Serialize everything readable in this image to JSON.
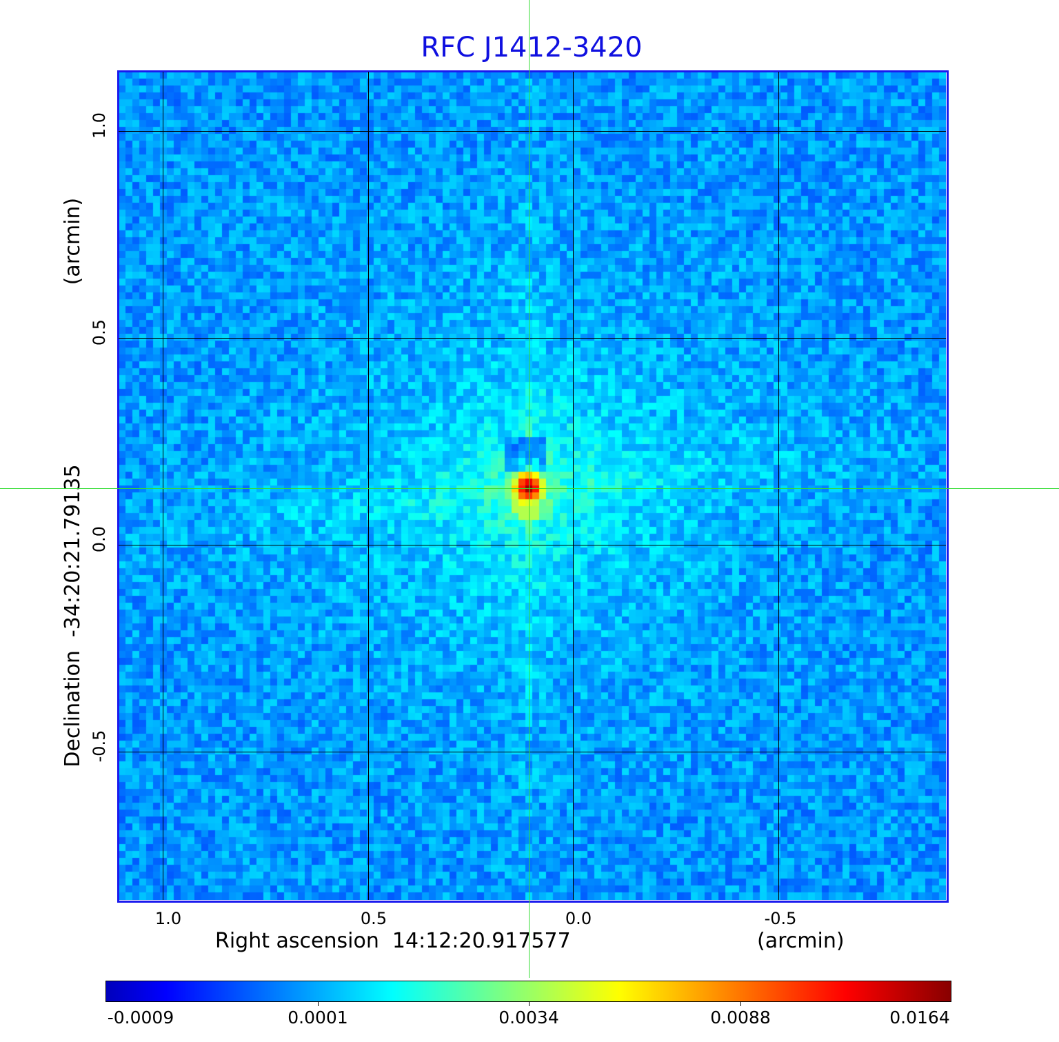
{
  "chart_data": {
    "type": "heatmap",
    "title": "RFC J1412-3420",
    "xlabel": "Right ascension  14:12:20.917577",
    "xunit": "(arcmin)",
    "ylabel": "Declination  -34:20:21.79135",
    "yunit": "(arcmin)",
    "xlim": [
      1.108,
      -0.909
    ],
    "ylim": [
      -0.858,
      1.143
    ],
    "x_ticks": [
      "1.0",
      "0.5",
      "0.0",
      "-0.5"
    ],
    "x_tick_values": [
      1.0,
      0.5,
      0.0,
      -0.5
    ],
    "y_ticks": [
      "1.0",
      "0.5",
      "0.0",
      "-0.5"
    ],
    "y_tick_values": [
      1.0,
      0.5,
      0.0,
      -0.5
    ],
    "grid": true,
    "colormap": "jet",
    "colorbar": {
      "ticks": [
        "-0.0009",
        "0.0001",
        "0.0034",
        "0.0088",
        "0.0164"
      ],
      "min": -0.0009,
      "max": 0.0164,
      "placement": "bottom"
    },
    "peak": {
      "x": 0.108,
      "y": 0.137,
      "value": 0.0164
    },
    "crosshair": {
      "x": 0.108,
      "y": 0.137
    },
    "colors": {
      "title": "#1010e0",
      "frame": "#1a1aee",
      "grid": "#000000",
      "crosshair": "#33dd33"
    }
  }
}
